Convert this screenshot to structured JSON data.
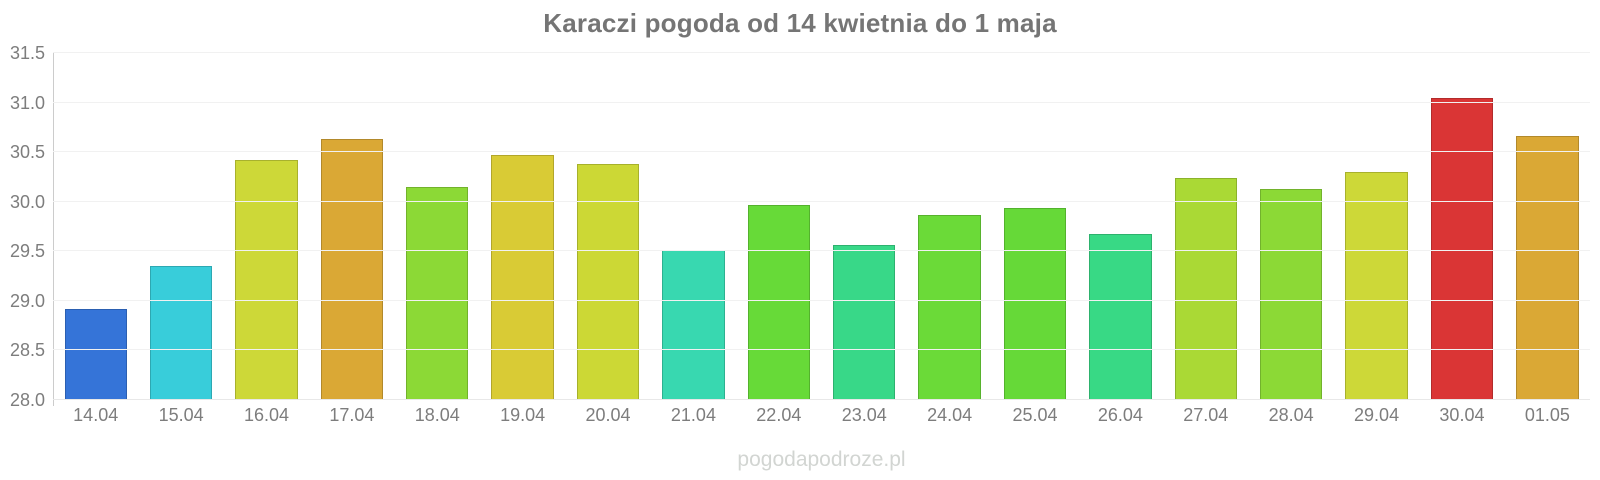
{
  "title": "Karaczi pogoda od 14 kwietnia do 1 maja",
  "watermark": "pogodapodroze.pl",
  "chart_data": {
    "type": "bar",
    "title": "Karaczi pogoda od 14 kwietnia do 1 maja",
    "categories": [
      "14.04",
      "15.04",
      "16.04",
      "17.04",
      "18.04",
      "19.04",
      "20.04",
      "21.04",
      "22.04",
      "23.04",
      "24.04",
      "25.04",
      "26.04",
      "27.04",
      "28.04",
      "29.04",
      "30.04",
      "01.05"
    ],
    "values": [
      28.92,
      29.35,
      30.42,
      30.63,
      30.15,
      30.47,
      30.38,
      29.51,
      29.97,
      29.56,
      29.87,
      29.94,
      29.67,
      30.24,
      30.13,
      30.3,
      31.05,
      30.66
    ],
    "bar_colors": [
      "#3574d8",
      "#38cdda",
      "#cdd838",
      "#daa835",
      "#8cd936",
      "#d9cb35",
      "#ccd835",
      "#38d8b0",
      "#67da38",
      "#38d888",
      "#6bda38",
      "#66d938",
      "#38d985",
      "#aad935",
      "#8cd936",
      "#cdd838",
      "#da3535",
      "#daa835"
    ],
    "xlabel": "",
    "ylabel": "",
    "ylim": [
      28.0,
      31.5
    ],
    "yticks": [
      31.5,
      31.0,
      30.5,
      30.0,
      29.5,
      29.0,
      28.5,
      28.0
    ],
    "ytick_format_decimals": 1,
    "grid": true,
    "legend": false
  },
  "colors": {
    "title_text": "#757575",
    "tick_text": "#7d7d7d",
    "gridline": "#f1f1f1",
    "axis_line": "#cccccc",
    "watermark_text": "#d2d5d2",
    "background": "#ffffff"
  }
}
